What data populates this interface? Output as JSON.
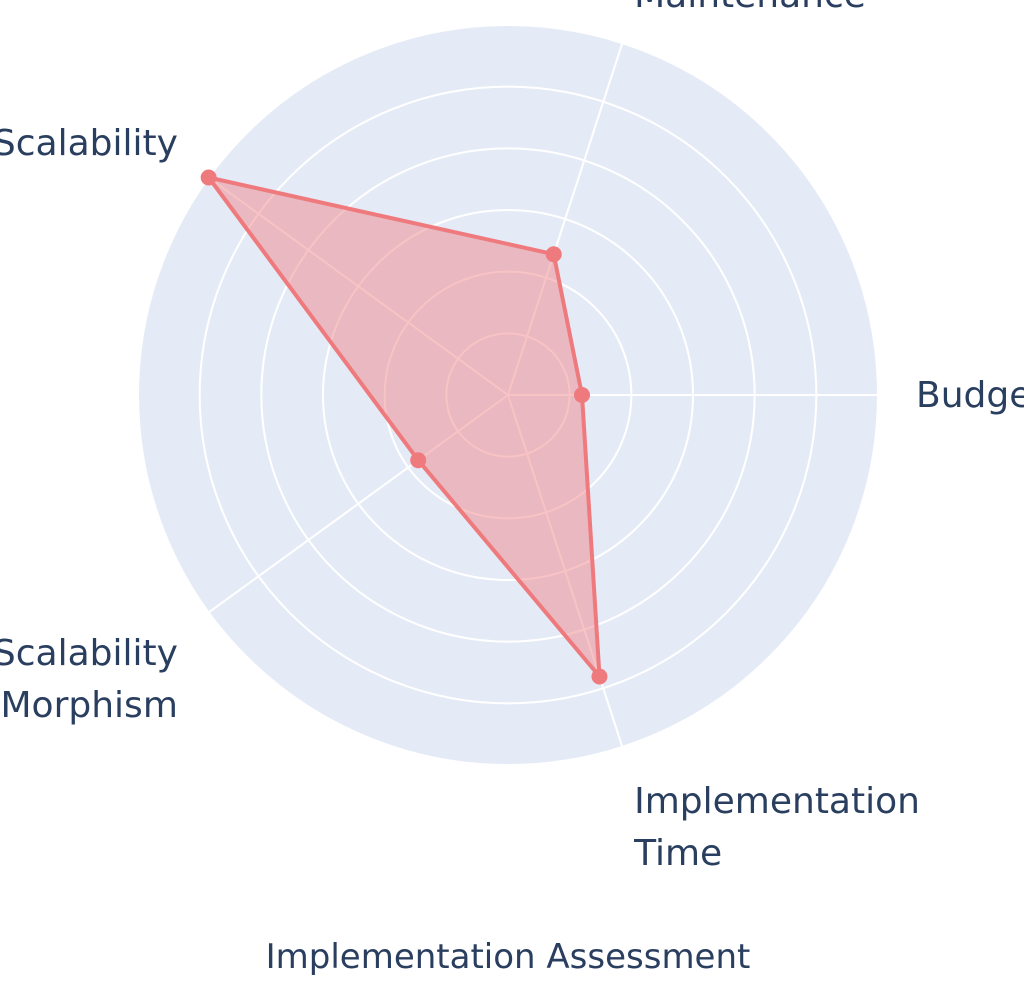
{
  "chart_data": {
    "type": "radar",
    "title": "Implementation Assessment",
    "axes": [
      "Budget",
      "Maintenance",
      "Scalability",
      "Scalability Morphism",
      "Implementation Time"
    ],
    "axis_label_lines": [
      [
        "Budget"
      ],
      [
        "Maintenance"
      ],
      [
        "Scalability"
      ],
      [
        "Scalability",
        "Morphism"
      ],
      [
        "Implementation",
        "Time"
      ]
    ],
    "series": [
      {
        "values": [
          2,
          4,
          10,
          3,
          8
        ]
      }
    ],
    "r_range": [
      0,
      10
    ],
    "grid": true,
    "ring_count": 6,
    "legend": "none",
    "colors": {
      "background": "#e5ebf6",
      "grid": "#ffffff",
      "series_line": "#ef7a7e",
      "series_fill": "rgba(239, 122, 126, 0.45)",
      "text": "#2a3f5f"
    }
  }
}
